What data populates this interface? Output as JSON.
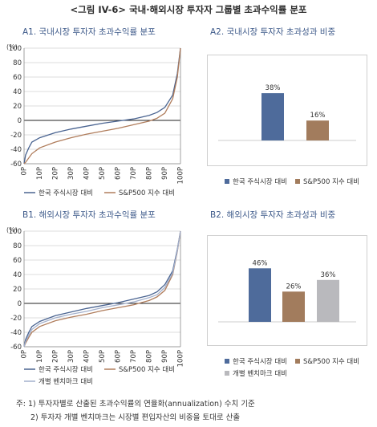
{
  "figure_title": "<그림 IV-6> 국내·해외시장 투자자 그룹별 초과수익률 분포",
  "panels": {
    "a1_title": "A1. 국내시장 투자자 초과수익률 분포",
    "a2_title": "A2. 국내시장 투자자 초과성과 비중",
    "b1_title": "B1. 해외시장 투자자 초과수익률 분포",
    "b2_title": "B2. 해외시장 투자자 초과성과 비중"
  },
  "notes": [
    "주: 1) 투자자별로 산출된 초과수익률의 연율화(annualization) 수치 기준",
    "2) 투자자 개별 벤치마크는 시장별 편입자산의 비중을 토대로 산출"
  ],
  "colors": {
    "korea": "#4e6b9b",
    "sp500": "#a27c5d",
    "benchmark": "#b9b9bd",
    "korea_line": "#4a6491",
    "sp500_line": "#b07d5c",
    "bench_line": "#a3b0cc"
  },
  "chart_data": [
    {
      "type": "line",
      "unit_label": "(%)",
      "ylim": [
        -60,
        100
      ],
      "yticks": [
        "100",
        "80",
        "60",
        "40",
        "20",
        "0",
        "-20",
        "-40",
        "-60"
      ],
      "xticks": [
        "0P",
        "10P",
        "20P",
        "30P",
        "40P",
        "50P",
        "60P",
        "70P",
        "80P",
        "90P",
        "100P"
      ],
      "x": [
        0,
        1,
        3,
        5,
        10,
        20,
        30,
        40,
        50,
        60,
        70,
        80,
        85,
        90,
        95,
        98,
        100
      ],
      "series": [
        {
          "name": "한국 주식시장 대비",
          "values": [
            -60,
            -48,
            -38,
            -30,
            -24,
            -17,
            -12,
            -8,
            -4,
            -1,
            2,
            7,
            11,
            18,
            35,
            65,
            100
          ]
        },
        {
          "name": "S&P500 지수 대비",
          "values": [
            -60,
            -58,
            -52,
            -46,
            -38,
            -30,
            -24,
            -19,
            -15,
            -11,
            -6,
            -1,
            3,
            10,
            30,
            60,
            100
          ]
        }
      ]
    },
    {
      "type": "bar",
      "categories": [
        "한국 주식시장 대비",
        "S&P500 지수 대비"
      ],
      "values": [
        38,
        16
      ],
      "labels": [
        "38%",
        "16%"
      ],
      "ylim": [
        0,
        55
      ]
    },
    {
      "type": "line",
      "unit_label": "(%)",
      "ylim": [
        -60,
        100
      ],
      "yticks": [
        "100",
        "80",
        "60",
        "40",
        "20",
        "0",
        "-20",
        "-40",
        "-60"
      ],
      "xticks": [
        "0P",
        "10P",
        "20P",
        "30P",
        "40P",
        "50P",
        "60P",
        "70P",
        "80P",
        "90P",
        "100P"
      ],
      "x": [
        0,
        1,
        3,
        5,
        10,
        20,
        30,
        40,
        50,
        60,
        70,
        80,
        85,
        90,
        95,
        98,
        100
      ],
      "series": [
        {
          "name": "한국 주식시장 대비",
          "values": [
            -60,
            -50,
            -40,
            -32,
            -25,
            -17,
            -12,
            -7,
            -3,
            1,
            6,
            11,
            16,
            26,
            45,
            75,
            100
          ]
        },
        {
          "name": "S&P500 지수 대비",
          "values": [
            -60,
            -55,
            -47,
            -40,
            -32,
            -24,
            -19,
            -15,
            -10,
            -6,
            -2,
            4,
            9,
            18,
            40,
            72,
            100
          ]
        },
        {
          "name": "개별 벤치마크 대비",
          "values": [
            -60,
            -53,
            -44,
            -36,
            -28,
            -20,
            -15,
            -11,
            -6,
            -2,
            2,
            8,
            12,
            22,
            42,
            73,
            100
          ]
        }
      ]
    },
    {
      "type": "bar",
      "categories": [
        "한국 주식시장 대비",
        "S&P500 지수 대비",
        "개별 벤치마크 대비"
      ],
      "values": [
        46,
        26,
        36
      ],
      "labels": [
        "46%",
        "26%",
        "36%"
      ],
      "ylim": [
        0,
        55
      ]
    }
  ]
}
